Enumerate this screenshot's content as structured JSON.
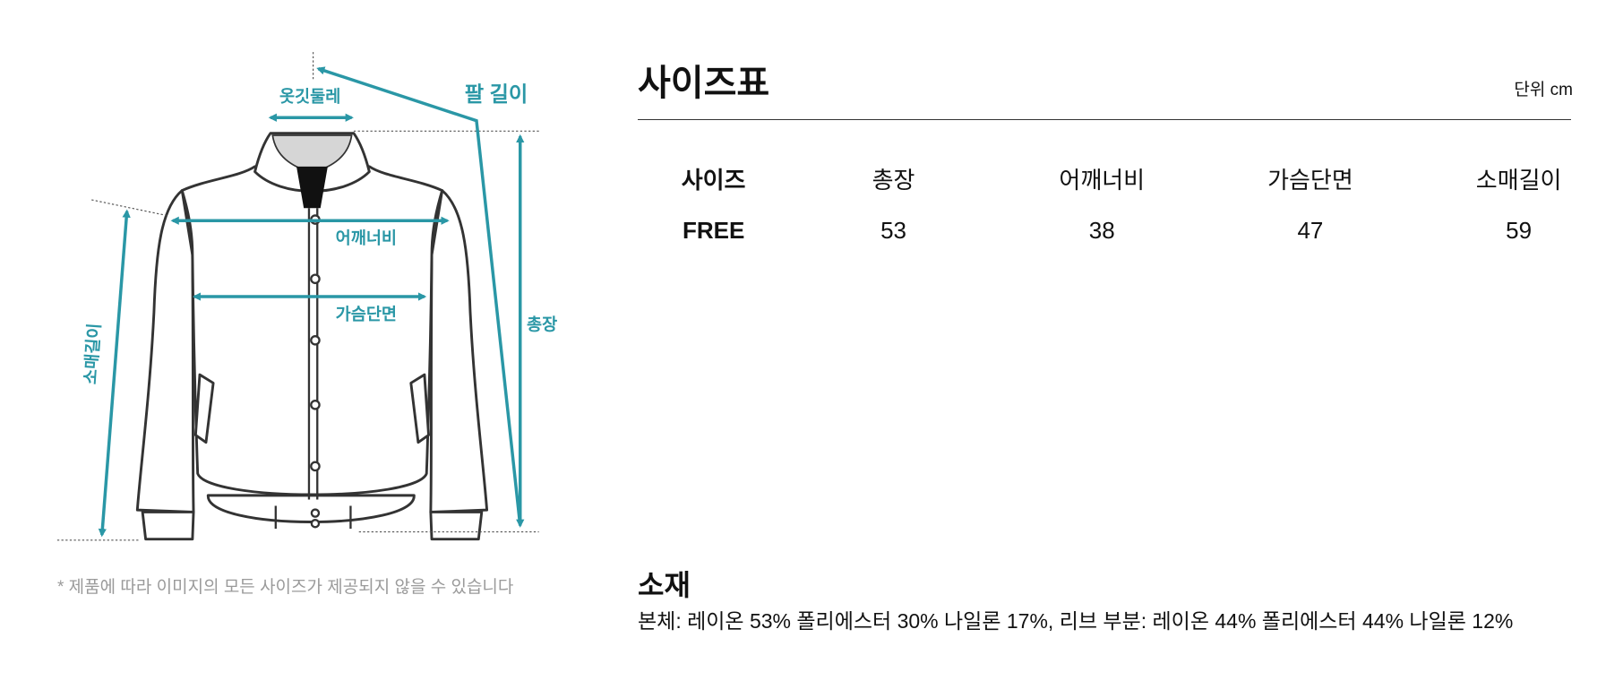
{
  "diagram": {
    "labels": {
      "collar": "옷깃둘레",
      "arm_length": "팔 길이",
      "shoulder": "어깨너비",
      "chest": "가슴단면",
      "sleeve": "소매길이",
      "total_length": "총장"
    },
    "note": "* 제품에 따라 이미지의 모든 사이즈가 제공되지 않을 수 있습니다"
  },
  "header": {
    "title": "사이즈표",
    "unit": "단위 cm"
  },
  "table": {
    "columns": [
      "사이즈",
      "총장",
      "어깨너비",
      "가슴단면",
      "소매길이"
    ],
    "rows": [
      [
        "FREE",
        53,
        38,
        47,
        59
      ]
    ]
  },
  "material": {
    "title": "소재",
    "text": "본체: 레이온 53% 폴리에스터 30% 나일론 17%, 리브 부분: 레이온 44% 폴리에스터 44% 나일론 12%"
  }
}
